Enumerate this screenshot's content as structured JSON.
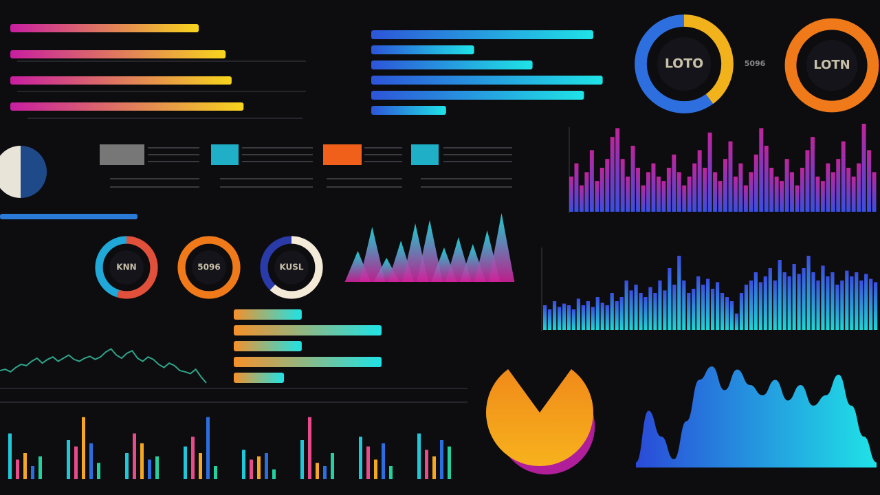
{
  "chart_data": [
    {
      "type": "hbar",
      "values": [
        63,
        72,
        74,
        78
      ],
      "colors": [
        "#c81ea0",
        "#f7d51c"
      ]
    },
    {
      "type": "hbar",
      "values": [
        95,
        44,
        69,
        99,
        91,
        32
      ],
      "colors": [
        "#2d55d8",
        "#1fe3e6"
      ]
    },
    {
      "type": "donut",
      "annotation": "5096",
      "series": [
        {
          "label": "LOTO",
          "values": [
            40,
            60
          ],
          "colors": [
            "#f2b21c",
            "#2e6fe0"
          ]
        },
        {
          "label": "LOTN",
          "values": [
            100
          ],
          "colors": [
            "#f07a1a"
          ]
        }
      ]
    },
    {
      "type": "spectrum",
      "values": [
        40,
        55,
        30,
        45,
        70,
        35,
        50,
        60,
        85,
        95,
        60,
        40,
        75,
        50,
        30,
        45,
        55,
        40,
        35,
        50,
        65,
        45,
        30,
        40,
        55,
        70,
        50,
        90,
        45,
        35,
        60,
        80,
        40,
        55,
        30,
        45,
        65,
        95,
        75,
        50,
        40,
        35,
        60,
        45,
        30,
        50,
        70,
        85,
        40,
        35,
        55,
        45,
        60,
        80,
        50,
        40,
        55,
        100,
        70,
        45
      ],
      "colors": [
        "#3a4ee0",
        "#c0249c"
      ]
    },
    {
      "type": "vbar",
      "values": [
        30,
        25,
        35,
        28,
        32,
        30,
        25,
        38,
        30,
        35,
        28,
        40,
        33,
        30,
        45,
        35,
        40,
        60,
        48,
        55,
        45,
        40,
        52,
        45,
        60,
        48,
        75,
        55,
        90,
        60,
        45,
        50,
        65,
        55,
        62,
        50,
        58,
        45,
        40,
        35,
        20,
        45,
        55,
        60,
        70,
        58,
        65,
        75,
        60,
        85,
        70,
        65,
        80,
        68,
        75,
        90,
        70,
        60,
        78,
        65,
        70,
        55,
        60,
        72,
        65,
        70,
        60,
        68,
        62,
        58
      ],
      "colors": [
        "#1fd6d6",
        "#3a4ee0"
      ]
    },
    {
      "type": "hbar",
      "values": [
        46,
        100,
        46,
        100,
        34
      ],
      "colors": [
        "#f5902a",
        "#1fe3e6"
      ]
    },
    {
      "type": "donut",
      "series": [
        {
          "label": "KNN",
          "values": [
            55,
            45
          ],
          "colors": [
            "#e0503a",
            "#1fa8d8"
          ]
        },
        {
          "label": "5096",
          "values": [
            100
          ],
          "colors": [
            "#f07a1a"
          ]
        },
        {
          "label": "KUSL",
          "values": [
            62,
            38
          ],
          "colors": [
            "#f3ead8",
            "#2a3aa8"
          ]
        }
      ]
    },
    {
      "type": "peaks",
      "values": [
        45,
        80,
        35,
        60,
        85,
        90,
        50,
        65,
        55,
        75,
        100
      ],
      "colors": [
        "#1fe3e6",
        "#d0209a"
      ]
    },
    {
      "type": "line",
      "values": [
        40,
        42,
        38,
        45,
        50,
        48,
        55,
        60,
        52,
        58,
        62,
        55,
        60,
        65,
        58,
        55,
        60,
        63,
        58,
        62,
        70,
        75,
        65,
        60,
        68,
        72,
        60,
        55,
        62,
        58,
        50,
        45,
        52,
        48,
        40,
        38,
        35,
        42,
        30,
        20
      ],
      "color": "#2fa58a"
    },
    {
      "type": "area",
      "values": [
        5,
        55,
        30,
        8,
        45,
        85,
        98,
        75,
        95,
        80,
        70,
        85,
        65,
        80,
        60,
        70,
        90,
        60,
        30,
        5
      ],
      "colors": [
        "#1fe3e6",
        "#2a4ad8"
      ]
    },
    {
      "type": "pie",
      "values": [
        80,
        20
      ],
      "colors": [
        "#f7b21c",
        "#b01e9a"
      ]
    },
    {
      "type": "grouped",
      "groups": [
        [
          70,
          30,
          40,
          20,
          35
        ],
        [
          60,
          50,
          95,
          55,
          25
        ],
        [
          40,
          70,
          55,
          30,
          35
        ],
        [
          50,
          65,
          40,
          95,
          20
        ],
        [
          45,
          30,
          35,
          40,
          15
        ],
        [
          60,
          95,
          25,
          20,
          40
        ],
        [
          65,
          50,
          30,
          55,
          20
        ],
        [
          70,
          45,
          35,
          60,
          50
        ]
      ],
      "colors": [
        "#1fc8d8",
        "#e84a8a",
        "#f5a623",
        "#2a6ee0",
        "#22d0a0"
      ]
    }
  ]
}
